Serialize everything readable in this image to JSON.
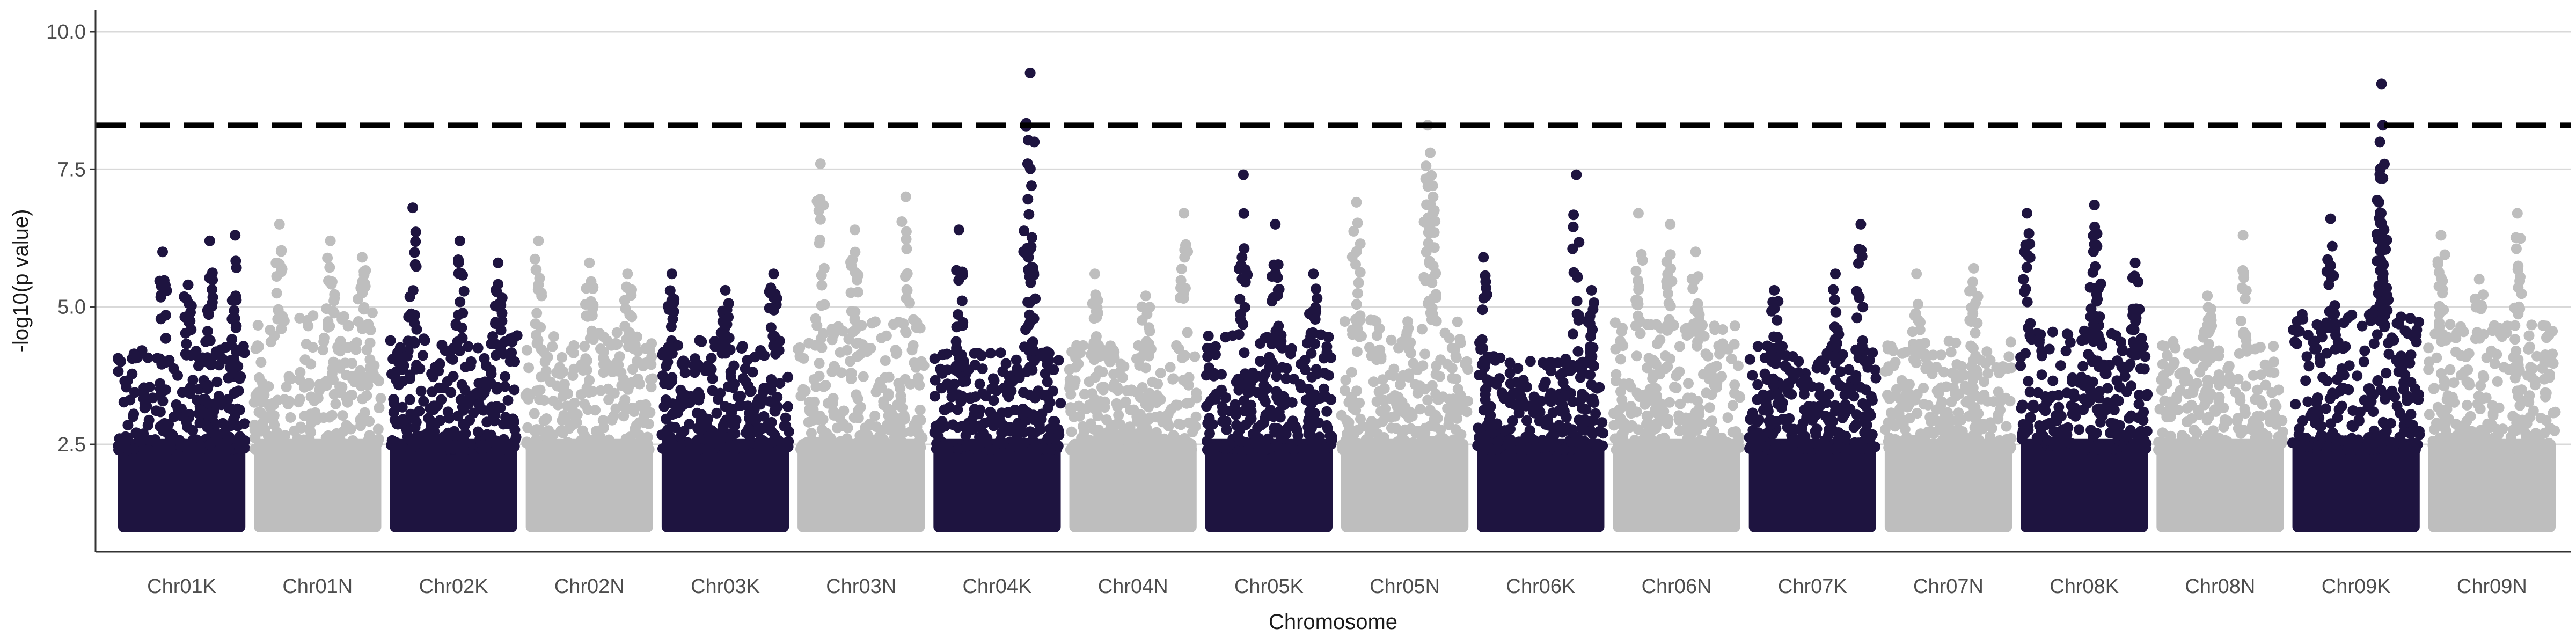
{
  "chart_data": {
    "type": "scatter",
    "title": "",
    "xlabel": "Chromosome",
    "ylabel": "-log10(p value)",
    "ylim": [
      0.55,
      10.4
    ],
    "yticks": [
      2.5,
      5.0,
      7.5,
      10.0
    ],
    "ytick_labels": [
      "2.5",
      "5.0",
      "7.5",
      "10.0"
    ],
    "grid": "horizontal major lines",
    "threshold": {
      "value": 8.3,
      "style": "dashed",
      "color": "#000000"
    },
    "colors": {
      "dark": "#1e1440",
      "light": "#bebebe",
      "grid": "#d9d9d9",
      "axis": "#333333"
    },
    "categories": [
      "Chr01K",
      "Chr01N",
      "Chr02K",
      "Chr02N",
      "Chr03K",
      "Chr03N",
      "Chr04K",
      "Chr04N",
      "Chr05K",
      "Chr05N",
      "Chr06K",
      "Chr06N",
      "Chr07K",
      "Chr07N",
      "Chr08K",
      "Chr08N",
      "Chr09K",
      "Chr09N"
    ],
    "series": [
      {
        "category": "Chr01K",
        "color": "dark",
        "base_max": 4.3,
        "max": 6.3,
        "peaks": [
          [
            0.35,
            6.0
          ],
          [
            0.72,
            6.2
          ],
          [
            0.92,
            6.3
          ],
          [
            0.55,
            5.4
          ]
        ]
      },
      {
        "category": "Chr01N",
        "color": "light",
        "base_max": 4.9,
        "max": 6.5,
        "peaks": [
          [
            0.2,
            6.5
          ],
          [
            0.6,
            6.2
          ],
          [
            0.85,
            5.9
          ]
        ]
      },
      {
        "category": "Chr02K",
        "color": "dark",
        "base_max": 4.5,
        "max": 6.8,
        "peaks": [
          [
            0.18,
            6.8
          ],
          [
            0.55,
            6.2
          ],
          [
            0.85,
            5.8
          ]
        ]
      },
      {
        "category": "Chr02N",
        "color": "light",
        "base_max": 4.6,
        "max": 6.2,
        "peaks": [
          [
            0.1,
            6.2
          ],
          [
            0.5,
            5.8
          ],
          [
            0.8,
            5.6
          ]
        ]
      },
      {
        "category": "Chr03K",
        "color": "dark",
        "base_max": 4.4,
        "max": 5.6,
        "peaks": [
          [
            0.08,
            5.6
          ],
          [
            0.5,
            5.3
          ],
          [
            0.88,
            5.6
          ]
        ]
      },
      {
        "category": "Chr03N",
        "color": "light",
        "base_max": 4.8,
        "max": 7.6,
        "peaks": [
          [
            0.18,
            7.6
          ],
          [
            0.45,
            6.4
          ],
          [
            0.85,
            7.0
          ]
        ]
      },
      {
        "category": "Chr04K",
        "color": "dark",
        "base_max": 4.2,
        "max": 9.25,
        "peaks": [
          [
            0.2,
            6.4
          ],
          [
            0.76,
            9.25
          ],
          [
            0.74,
            7.6
          ],
          [
            0.77,
            7.2
          ]
        ]
      },
      {
        "category": "Chr04N",
        "color": "light",
        "base_max": 4.3,
        "max": 6.7,
        "peaks": [
          [
            0.2,
            5.6
          ],
          [
            0.9,
            6.7
          ],
          [
            0.6,
            5.2
          ]
        ]
      },
      {
        "category": "Chr05K",
        "color": "dark",
        "base_max": 4.5,
        "max": 7.4,
        "peaks": [
          [
            0.3,
            7.4
          ],
          [
            0.55,
            6.5
          ],
          [
            0.85,
            5.6
          ]
        ]
      },
      {
        "category": "Chr05N",
        "color": "light",
        "base_max": 4.8,
        "max": 8.3,
        "peaks": [
          [
            0.12,
            6.9
          ],
          [
            0.68,
            8.3
          ],
          [
            0.7,
            7.8
          ],
          [
            0.72,
            7.2
          ]
        ]
      },
      {
        "category": "Chr06K",
        "color": "dark",
        "base_max": 4.1,
        "max": 7.4,
        "peaks": [
          [
            0.05,
            5.9
          ],
          [
            0.78,
            7.4
          ],
          [
            0.9,
            5.3
          ]
        ]
      },
      {
        "category": "Chr06N",
        "color": "light",
        "base_max": 4.8,
        "max": 6.7,
        "peaks": [
          [
            0.2,
            6.7
          ],
          [
            0.45,
            6.5
          ],
          [
            0.65,
            6.0
          ]
        ]
      },
      {
        "category": "Chr07K",
        "color": "dark",
        "base_max": 4.3,
        "max": 6.5,
        "peaks": [
          [
            0.2,
            5.3
          ],
          [
            0.68,
            5.6
          ],
          [
            0.88,
            6.5
          ]
        ]
      },
      {
        "category": "Chr07N",
        "color": "light",
        "base_max": 4.4,
        "max": 5.7,
        "peaks": [
          [
            0.25,
            5.6
          ],
          [
            0.7,
            5.7
          ]
        ]
      },
      {
        "category": "Chr08K",
        "color": "dark",
        "base_max": 4.6,
        "max": 6.85,
        "peaks": [
          [
            0.05,
            6.7
          ],
          [
            0.58,
            6.85
          ],
          [
            0.6,
            6.1
          ],
          [
            0.9,
            5.8
          ]
        ]
      },
      {
        "category": "Chr08N",
        "color": "light",
        "base_max": 4.4,
        "max": 6.3,
        "peaks": [
          [
            0.68,
            6.3
          ],
          [
            0.4,
            5.2
          ]
        ]
      },
      {
        "category": "Chr09K",
        "color": "dark",
        "base_max": 4.9,
        "max": 9.05,
        "peaks": [
          [
            0.3,
            6.6
          ],
          [
            0.68,
            6.9
          ],
          [
            0.7,
            9.05
          ],
          [
            0.71,
            8.3
          ],
          [
            0.72,
            6.4
          ]
        ]
      },
      {
        "category": "Chr09N",
        "color": "light",
        "base_max": 4.7,
        "max": 6.7,
        "peaks": [
          [
            0.1,
            6.3
          ],
          [
            0.7,
            6.7
          ],
          [
            0.4,
            5.5
          ]
        ]
      }
    ]
  }
}
